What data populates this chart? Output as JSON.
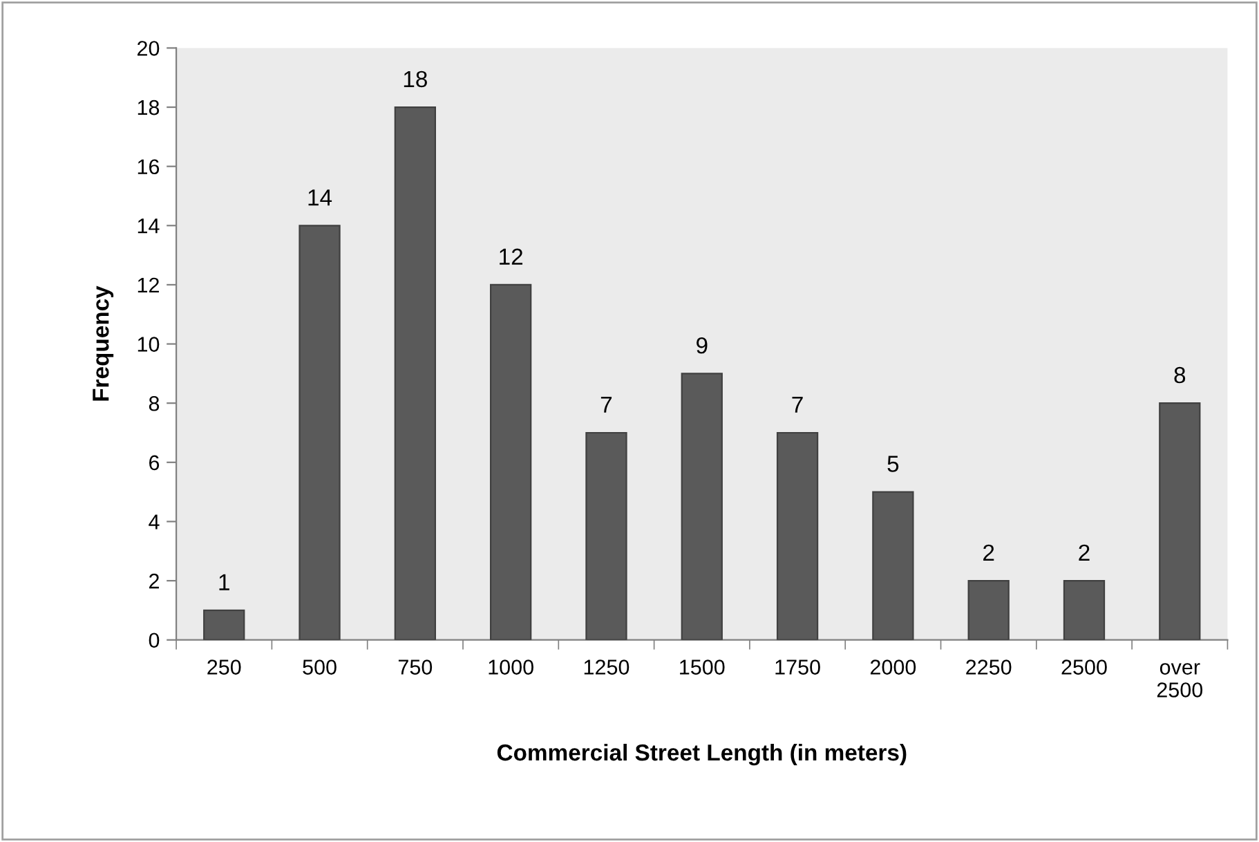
{
  "chart_data": {
    "type": "bar",
    "xlabel": "Commercial Street Length (in meters)",
    "ylabel": "Frequency",
    "categories": [
      "250",
      "500",
      "750",
      "1000",
      "1250",
      "1500",
      "1750",
      "2000",
      "2250",
      "2500",
      "over\n2500"
    ],
    "values": [
      1,
      14,
      18,
      12,
      7,
      9,
      7,
      5,
      2,
      2,
      8
    ],
    "color": "#5a5a5a",
    "ylim": [
      0,
      20
    ],
    "yticks": [
      0,
      2,
      4,
      6,
      8,
      10,
      12,
      14,
      16,
      18,
      20
    ],
    "grid": false,
    "data_labels": true
  }
}
